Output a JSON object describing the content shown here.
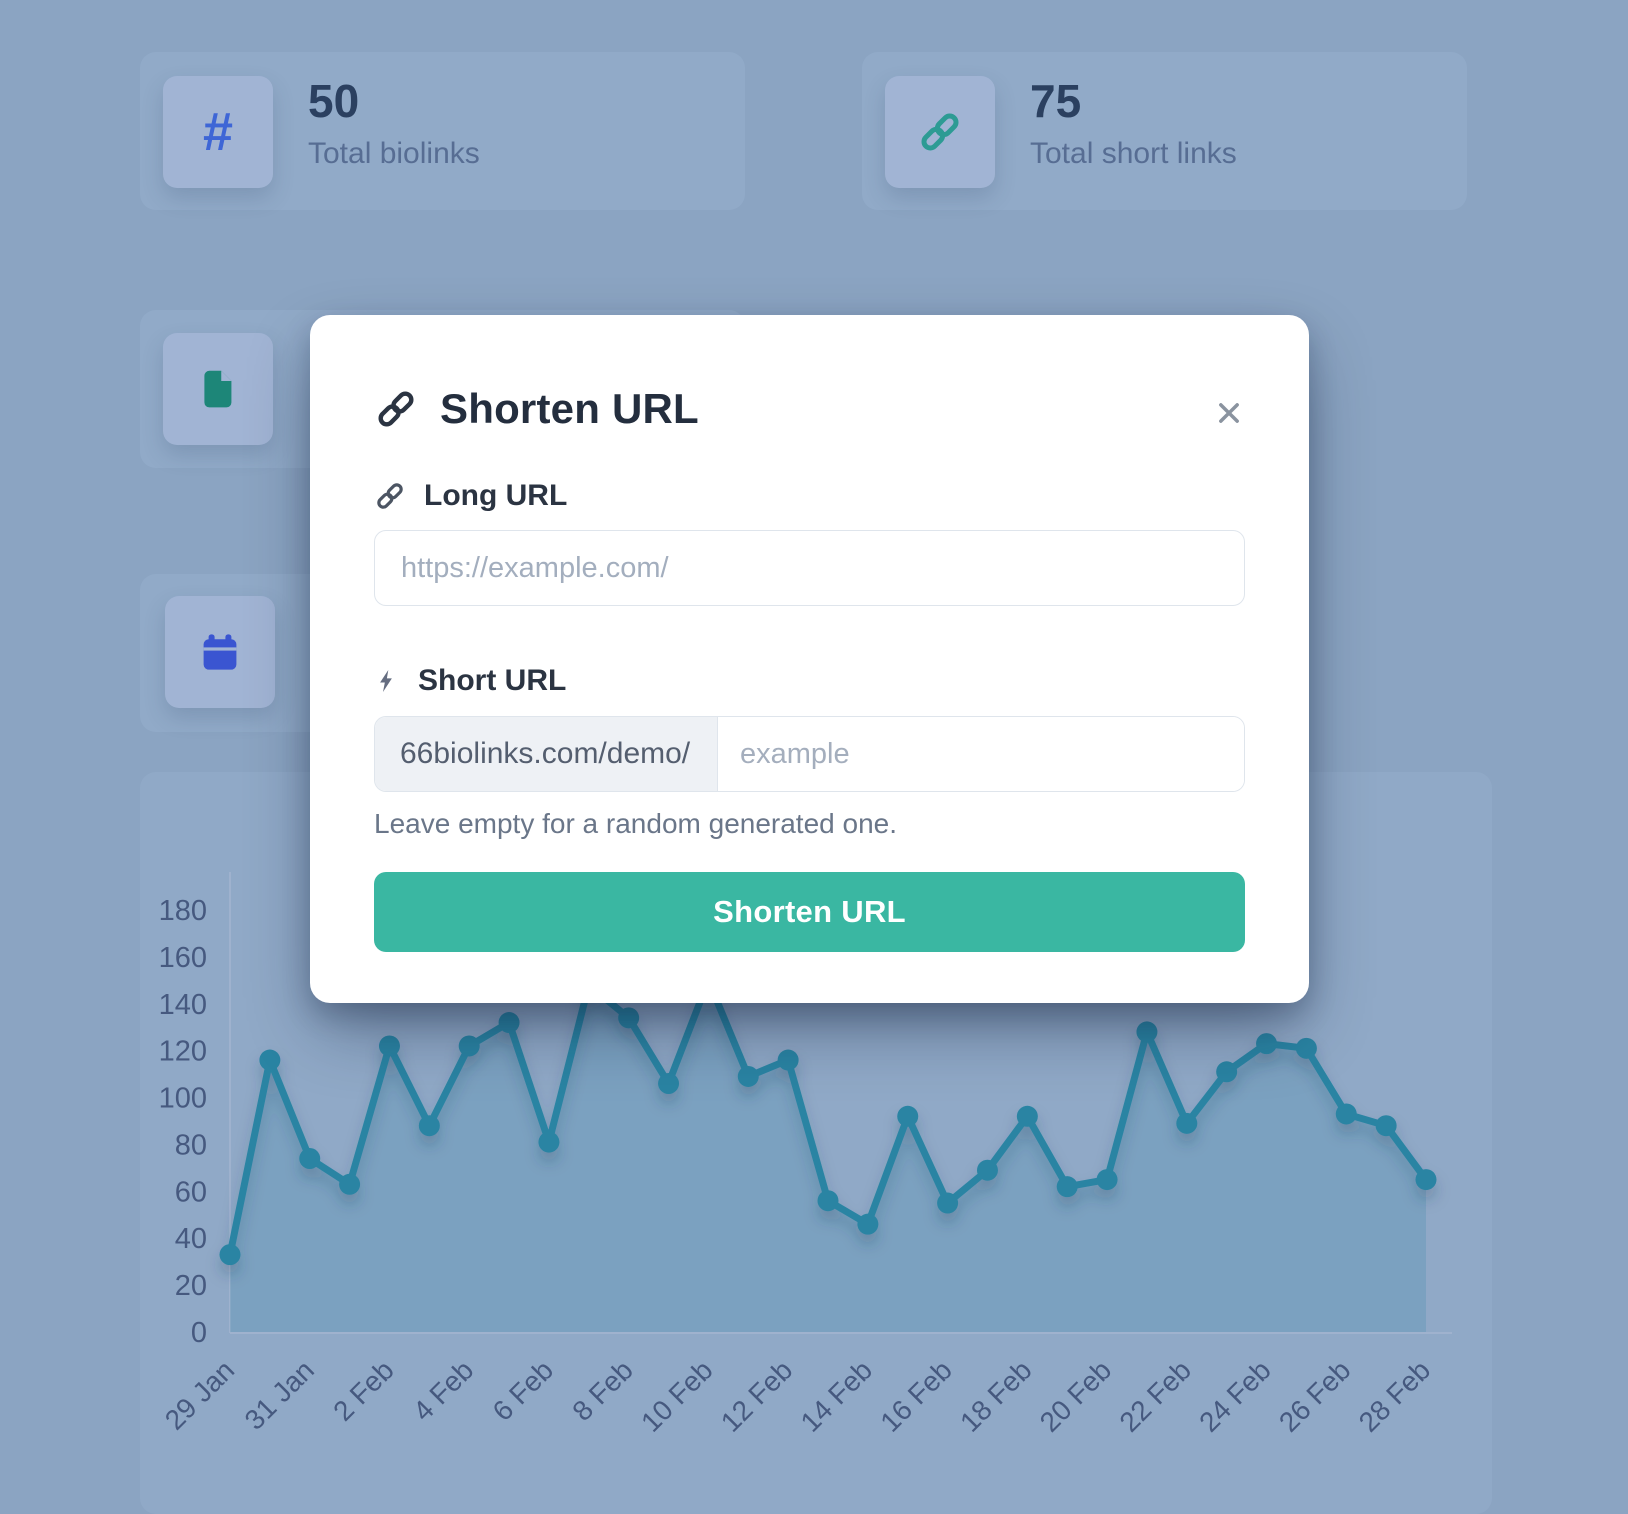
{
  "stats": [
    {
      "icon": "hash-icon",
      "icon_glyph": "#",
      "value": "50",
      "label": "Total biolinks"
    },
    {
      "icon": "link-icon",
      "value": "75",
      "label": "Total short links"
    },
    {
      "icon": "document-icon"
    },
    {
      "icon": "calendar-icon"
    }
  ],
  "modal": {
    "title": "Shorten URL",
    "title_icon": "link-icon",
    "close_icon": "x-icon",
    "long_url_label": "Long URL",
    "long_url_icon": "link-icon",
    "long_url_placeholder": "https://example.com/",
    "short_url_label": "Short URL",
    "short_url_icon": "lightning-icon",
    "short_url_prefix": "66biolinks.com/demo/",
    "short_url_placeholder": "example",
    "helper_text": "Leave empty for a random generated one.",
    "submit_label": "Shorten URL"
  },
  "chart_data": {
    "type": "line",
    "title": "",
    "x": [
      "29 Jan",
      "30 Jan",
      "31 Jan",
      "1 Feb",
      "2 Feb",
      "3 Feb",
      "4 Feb",
      "5 Feb",
      "6 Feb",
      "7 Feb",
      "8 Feb",
      "9 Feb",
      "10 Feb",
      "11 Feb",
      "12 Feb",
      "13 Feb",
      "14 Feb",
      "15 Feb",
      "16 Feb",
      "17 Feb",
      "18 Feb",
      "19 Feb",
      "20 Feb",
      "21 Feb",
      "22 Feb",
      "23 Feb",
      "24 Feb",
      "25 Feb",
      "26 Feb",
      "27 Feb",
      "28 Feb"
    ],
    "values": [
      33,
      116,
      74,
      63,
      122,
      88,
      122,
      132,
      81,
      148,
      134,
      106,
      150,
      109,
      116,
      56,
      46,
      92,
      55,
      69,
      92,
      62,
      65,
      128,
      89,
      111,
      123,
      121,
      93,
      88,
      65
    ],
    "xtick_labels": [
      "29 Jan",
      "31 Jan",
      "2 Feb",
      "4 Feb",
      "6 Feb",
      "8 Feb",
      "10 Feb",
      "12 Feb",
      "14 Feb",
      "16 Feb",
      "18 Feb",
      "20 Feb",
      "22 Feb",
      "24 Feb",
      "26 Feb",
      "28 Feb"
    ],
    "ylim": [
      0,
      180
    ],
    "ytick_step": 20,
    "xlabel": "",
    "ylabel": "",
    "grid": false,
    "legend": false,
    "line_color": "#2a84a3",
    "fill_color": "rgba(42,132,163,0.20)",
    "axis_text_color": "#46597f",
    "axis_line_color": "#9fb2ce"
  },
  "colors": {
    "page_bg": "#8ba4c2",
    "card_bg": "#91aac8",
    "tile_bg": "#a1b4d4",
    "hash_blue": "#3e66d6",
    "link_teal": "#2d9b94",
    "document_teal": "#1d8678",
    "calendar_blue": "#3a55d1",
    "accent_teal": "#3ab7a2",
    "modal_bg": "#ffffff"
  }
}
